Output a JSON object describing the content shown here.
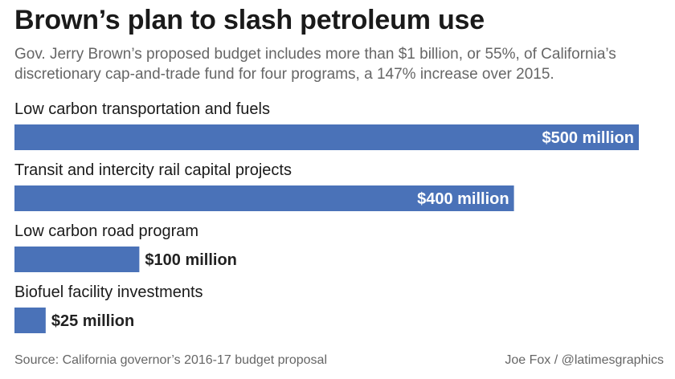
{
  "header": {
    "title": "Brown’s plan to slash petroleum use",
    "subtitle": "Gov. Jerry Brown’s proposed budget includes more than $1 billion, or 55%, of California’s discretionary cap-and-trade fund for four programs, a 147% increase over 2015."
  },
  "footer": {
    "source": "Source: California governor’s 2016-17 budget proposal",
    "credit": "Joe Fox / @latimesgraphics"
  },
  "colors": {
    "bar": "#4a72b8",
    "label_inside": "#ffffff",
    "label_outside": "#222222"
  },
  "chart_data": {
    "type": "bar",
    "orientation": "horizontal",
    "categories": [
      "Low carbon transportation and fuels",
      "Transit and intercity rail capital projects",
      "Low carbon road program",
      "Biofuel facility investments"
    ],
    "values": [
      500,
      400,
      100,
      25
    ],
    "value_labels": [
      "$500 million",
      "$400 million",
      "$100 million",
      "$25 million"
    ],
    "unit": "million USD",
    "xlim": [
      0,
      500
    ],
    "grid": false
  }
}
